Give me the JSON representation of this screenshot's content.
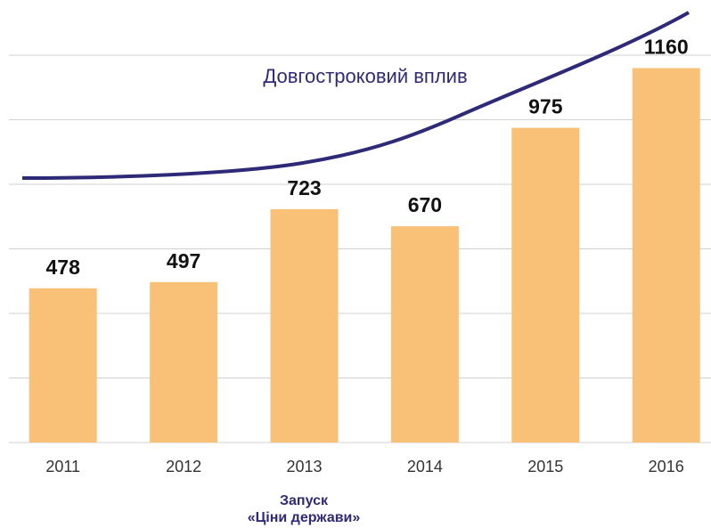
{
  "chart_data": {
    "type": "bar",
    "categories": [
      "2011",
      "2012",
      "2013",
      "2014",
      "2015",
      "2016"
    ],
    "values": [
      478,
      497,
      723,
      670,
      975,
      1160
    ],
    "color": "#f9c078",
    "ylim": [
      0,
      1200
    ],
    "yticks": [
      0,
      200,
      400,
      600,
      800,
      1000,
      1200
    ],
    "grid": true,
    "ytick_labels": false,
    "trend_label": "Довгостроковий вплив",
    "annotation": [
      "Запуск",
      "«Ціни держави»"
    ]
  }
}
